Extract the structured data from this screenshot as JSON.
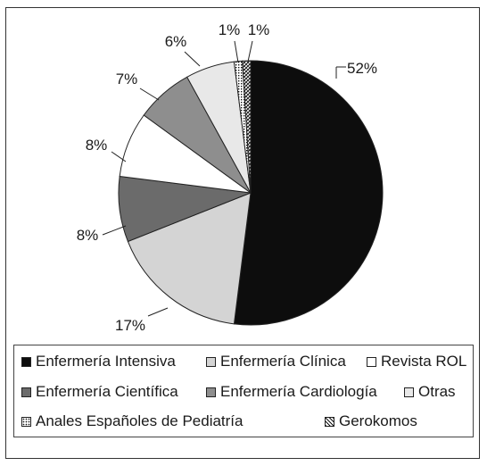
{
  "chart_data": {
    "type": "pie",
    "slices": [
      {
        "label": "Enfermería Intensiva",
        "value": 52,
        "label_text": "52%",
        "color": "#0d0d0d",
        "pattern": "solid"
      },
      {
        "label": "Enfermería Clínica",
        "value": 17,
        "label_text": "17%",
        "color": "#d4d4d4",
        "pattern": "solid"
      },
      {
        "label": "Enfermería Científica",
        "value": 8,
        "label_text": "8%",
        "color": "#6b6b6b",
        "pattern": "solid"
      },
      {
        "label": "Revista ROL",
        "value": 8,
        "label_text": "8%",
        "color": "#ffffff",
        "pattern": "solid"
      },
      {
        "label": "Enfermería Cardiología",
        "value": 7,
        "label_text": "7%",
        "color": "#8e8e8e",
        "pattern": "solid"
      },
      {
        "label": "Otras",
        "value": 6,
        "label_text": "6%",
        "color": "#e8e8e8",
        "pattern": "solid"
      },
      {
        "label": "Anales Españoles de Pediatría",
        "value": 1,
        "label_text": "1%",
        "color": "#ffffff",
        "pattern": "dots"
      },
      {
        "label": "Gerokomos",
        "value": 1,
        "label_text": "1%",
        "color": "#ffffff",
        "pattern": "hatch"
      }
    ],
    "legend_placement": "bottom",
    "legend_rows": [
      [
        "Enfermería Intensiva",
        "Enfermería Clínica",
        "Revista ROL"
      ],
      [
        "Enfermería Científica",
        "Enfermería Cardiología",
        "Otras"
      ],
      [
        "Anales Españoles de Pediatría",
        "Gerokomos"
      ]
    ]
  }
}
